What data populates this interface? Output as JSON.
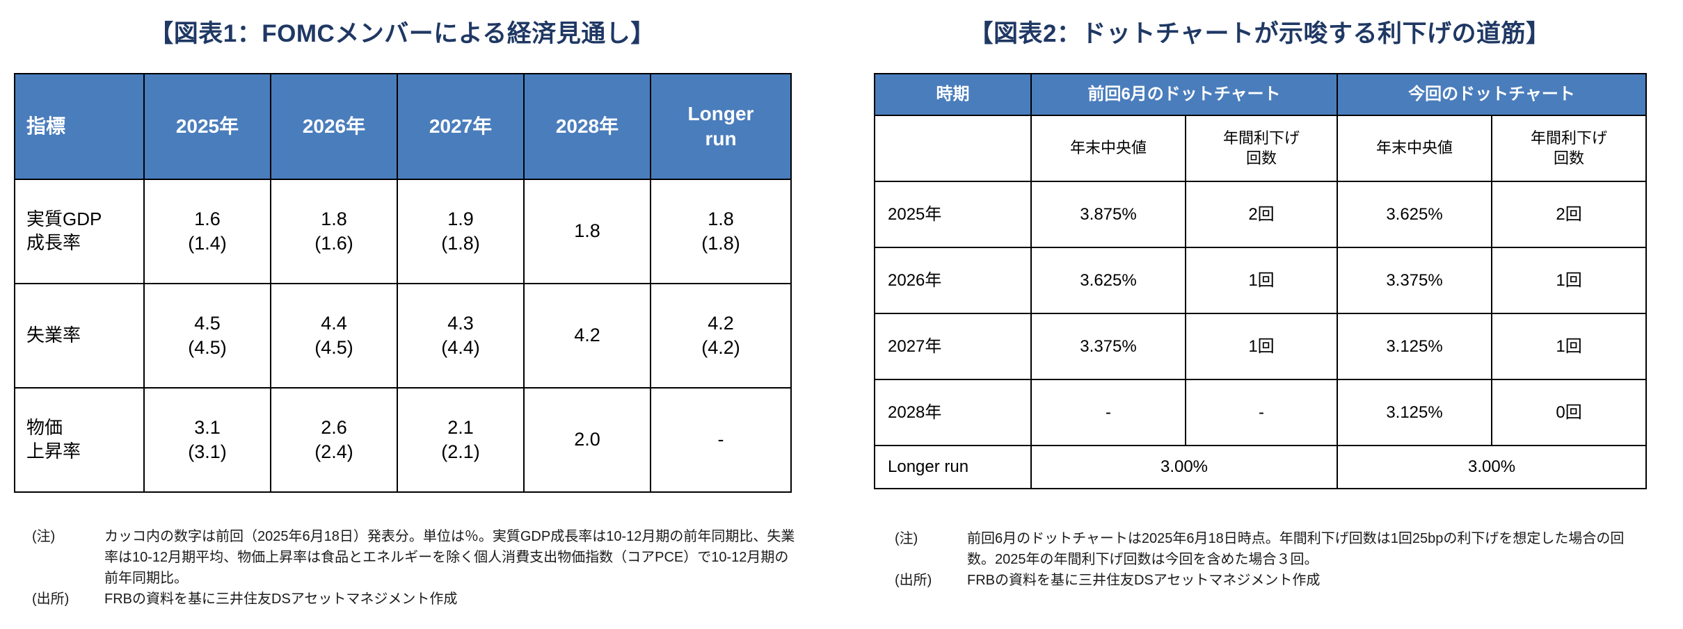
{
  "colors": {
    "title_navy": "#1F3864",
    "header_blue": "#4A7DBC",
    "border_black": "#000000",
    "background": "#FFFFFF"
  },
  "chart_data": [
    {
      "type": "table",
      "title": "【図表1：FOMCメンバーによる経済見通し】",
      "columns": [
        "指標",
        "2025年",
        "2026年",
        "2027年",
        "2028年",
        "Longer\nrun"
      ],
      "rows": [
        {
          "label": "実質GDP\n成長率",
          "values": [
            "1.6\n(1.4)",
            "1.8\n(1.6)",
            "1.9\n(1.8)",
            "1.8",
            "1.8\n(1.8)"
          ]
        },
        {
          "label": "失業率",
          "values": [
            "4.5\n(4.5)",
            "4.4\n(4.5)",
            "4.3\n(4.4)",
            "4.2",
            "4.2\n(4.2)"
          ]
        },
        {
          "label": "物価\n上昇率",
          "values": [
            "3.1\n(3.1)",
            "2.6\n(2.4)",
            "2.1\n(2.1)",
            "2.0",
            "-"
          ]
        }
      ],
      "notes": [
        {
          "label": "(注)",
          "text": "カッコ内の数字は前回（2025年6月18日）発表分。単位は％。実質GDP成長率は10-12月期の前年同期比、失業率は10-12月期平均、物価上昇率は食品とエネルギーを除く個人消費支出物価指数（コアPCE）で10-12月期の前年同期比。"
        },
        {
          "label": "(出所)",
          "text": "FRBの資料を基に三井住友DSアセットマネジメント作成"
        }
      ]
    },
    {
      "type": "table",
      "title": "【図表2：ドットチャートが示唆する利下げの道筋】",
      "header_groups": {
        "period": "時期",
        "previous": "前回6月のドットチャート",
        "current": "今回のドットチャート"
      },
      "subheaders": {
        "median": "年末中央値",
        "cuts": "年間利下げ\n回数"
      },
      "rows": [
        {
          "period": "2025年",
          "prev_median": "3.875%",
          "prev_cuts": "2回",
          "cur_median": "3.625%",
          "cur_cuts": "2回"
        },
        {
          "period": "2026年",
          "prev_median": "3.625%",
          "prev_cuts": "1回",
          "cur_median": "3.375%",
          "cur_cuts": "1回"
        },
        {
          "period": "2027年",
          "prev_median": "3.375%",
          "prev_cuts": "1回",
          "cur_median": "3.125%",
          "cur_cuts": "1回"
        },
        {
          "period": "2028年",
          "prev_median": "-",
          "prev_cuts": "-",
          "cur_median": "3.125%",
          "cur_cuts": "0回"
        }
      ],
      "longer_run": {
        "period": "Longer run",
        "prev": "3.00%",
        "cur": "3.00%"
      },
      "notes": [
        {
          "label": "(注)",
          "text": "前回6月のドットチャートは2025年6月18日時点。年間利下げ回数は1回25bpの利下げを想定した場合の回数。2025年の年間利下げ回数は今回を含めた場合３回。"
        },
        {
          "label": "(出所)",
          "text": "FRBの資料を基に三井住友DSアセットマネジメント作成"
        }
      ]
    }
  ]
}
